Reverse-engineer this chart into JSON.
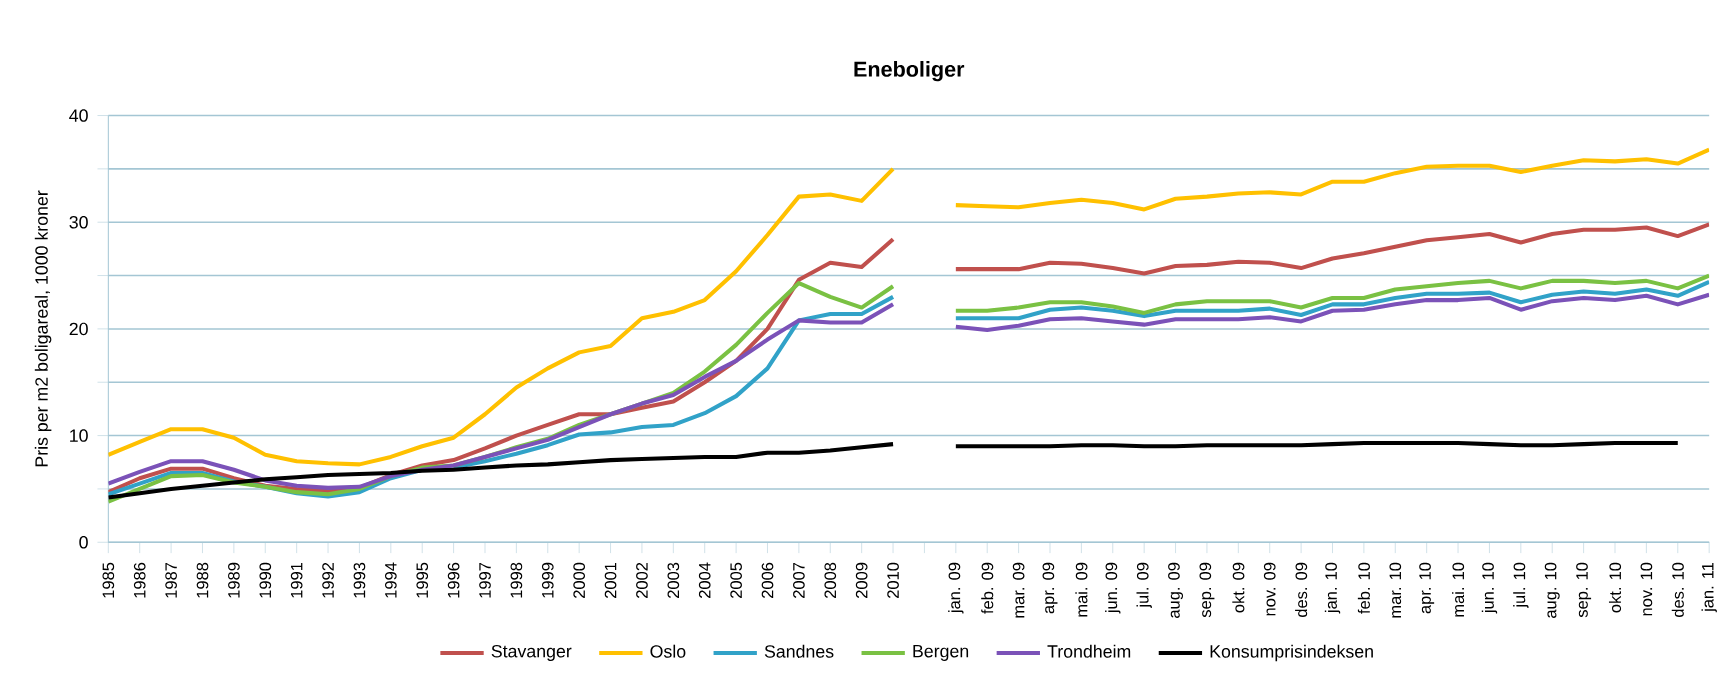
{
  "chart_data": {
    "type": "line",
    "title": "Eneboliger",
    "ylabel": "Pris per m2 boligareal, 1000 kroner",
    "categories": [
      "1985",
      "1986",
      "1987",
      "1988",
      "1989",
      "1990",
      "1991",
      "1992",
      "1993",
      "1994",
      "1995",
      "1996",
      "1997",
      "1998",
      "1999",
      "2000",
      "2001",
      "2002",
      "2003",
      "2004",
      "2005",
      "2006",
      "2007",
      "2008",
      "2009",
      "2010",
      null,
      "jan. 09",
      "feb. 09",
      "mar. 09",
      "apr. 09",
      "mai. 09",
      "jun. 09",
      "jul. 09",
      "aug. 09",
      "sep. 09",
      "okt. 09",
      "nov. 09",
      "des. 09",
      "jan. 10",
      "feb. 10",
      "mar. 10",
      "apr. 10",
      "mai. 10",
      "jun. 10",
      "jul. 10",
      "aug. 10",
      "sep. 10",
      "okt. 10",
      "nov. 10",
      "des. 10",
      "jan. 11"
    ],
    "series": [
      {
        "name": "Stavanger",
        "color": "#c0504d",
        "values": [
          4.7,
          6.0,
          6.9,
          6.9,
          6.0,
          5.3,
          5.0,
          4.8,
          5.1,
          6.3,
          7.2,
          7.7,
          8.8,
          10.0,
          11.0,
          12.0,
          12.0,
          12.6,
          13.2,
          15.0,
          17.0,
          20.0,
          24.6,
          26.2,
          25.8,
          28.4,
          null,
          25.6,
          25.6,
          25.6,
          26.2,
          26.1,
          25.7,
          25.2,
          25.9,
          26.0,
          26.3,
          26.2,
          25.7,
          26.6,
          27.1,
          27.7,
          28.3,
          28.6,
          28.9,
          28.1,
          28.9,
          29.3,
          29.3,
          29.5,
          28.7,
          29.8
        ]
      },
      {
        "name": "Oslo",
        "color": "#ffc000",
        "values": [
          8.2,
          9.4,
          10.6,
          10.6,
          9.8,
          8.2,
          7.6,
          7.4,
          7.3,
          8.0,
          9.0,
          9.8,
          12.0,
          14.5,
          16.3,
          17.8,
          18.4,
          21.0,
          21.6,
          22.7,
          25.4,
          28.8,
          32.4,
          32.6,
          32.0,
          35.0,
          null,
          31.6,
          31.5,
          31.4,
          31.8,
          32.1,
          31.8,
          31.2,
          32.2,
          32.4,
          32.7,
          32.8,
          32.6,
          33.8,
          33.8,
          34.6,
          35.2,
          35.3,
          35.3,
          34.7,
          35.3,
          35.8,
          35.7,
          35.9,
          35.5,
          36.8
        ]
      },
      {
        "name": "Sandnes",
        "color": "#31a2c8",
        "values": [
          4.5,
          5.5,
          6.5,
          6.5,
          5.7,
          5.2,
          4.6,
          4.3,
          4.7,
          6.0,
          6.8,
          7.0,
          7.6,
          8.3,
          9.1,
          10.1,
          10.3,
          10.8,
          11.0,
          12.1,
          13.7,
          16.3,
          20.8,
          21.4,
          21.4,
          23.0,
          null,
          21.0,
          21.0,
          21.0,
          21.8,
          22.0,
          21.7,
          21.2,
          21.7,
          21.7,
          21.7,
          21.9,
          21.3,
          22.3,
          22.3,
          22.9,
          23.3,
          23.3,
          23.4,
          22.5,
          23.2,
          23.5,
          23.3,
          23.7,
          23.1,
          24.4
        ]
      },
      {
        "name": "Bergen",
        "color": "#7ac143",
        "values": [
          3.8,
          5.0,
          6.2,
          6.3,
          5.6,
          5.2,
          4.7,
          4.5,
          5.0,
          6.2,
          7.0,
          7.2,
          8.0,
          8.9,
          9.7,
          11.0,
          12.0,
          13.0,
          14.0,
          16.0,
          18.5,
          21.5,
          24.3,
          23.0,
          22.0,
          24.0,
          null,
          21.7,
          21.7,
          22.0,
          22.5,
          22.5,
          22.1,
          21.5,
          22.3,
          22.6,
          22.6,
          22.6,
          22.0,
          22.9,
          22.9,
          23.7,
          24.0,
          24.3,
          24.5,
          23.8,
          24.5,
          24.5,
          24.3,
          24.5,
          23.8,
          25.0
        ]
      },
      {
        "name": "Trondheim",
        "color": "#7b52b8",
        "values": [
          5.5,
          6.6,
          7.6,
          7.6,
          6.8,
          5.8,
          5.3,
          5.1,
          5.2,
          6.2,
          6.8,
          7.2,
          8.0,
          8.8,
          9.6,
          10.8,
          12.0,
          13.0,
          13.8,
          15.5,
          17.0,
          19.0,
          20.8,
          20.6,
          20.6,
          22.3,
          null,
          20.2,
          19.9,
          20.3,
          20.9,
          21.0,
          20.7,
          20.4,
          20.9,
          20.9,
          20.9,
          21.1,
          20.7,
          21.7,
          21.8,
          22.3,
          22.7,
          22.7,
          22.9,
          21.8,
          22.6,
          22.9,
          22.7,
          23.1,
          22.3,
          23.2
        ]
      },
      {
        "name": "Konsumprisindeksen",
        "color": "#000000",
        "values": [
          4.2,
          4.6,
          5.0,
          5.3,
          5.6,
          5.9,
          6.1,
          6.3,
          6.4,
          6.5,
          6.7,
          6.8,
          7.0,
          7.2,
          7.3,
          7.5,
          7.7,
          7.8,
          7.9,
          8.0,
          8.0,
          8.4,
          8.4,
          8.6,
          8.9,
          9.2,
          null,
          9.0,
          9.0,
          9.0,
          9.0,
          9.1,
          9.1,
          9.0,
          9.0,
          9.1,
          9.1,
          9.1,
          9.1,
          9.2,
          9.3,
          9.3,
          9.3,
          9.3,
          9.2,
          9.1,
          9.1,
          9.2,
          9.3,
          9.3,
          9.3,
          null
        ]
      }
    ],
    "ylim": [
      0,
      40
    ],
    "yticks": [
      0,
      {
        "value": 5,
        "label": null
      },
      10,
      {
        "value": 15,
        "label": null
      },
      20,
      {
        "value": 25,
        "label": null
      },
      30,
      {
        "value": 35,
        "label": null
      },
      40
    ],
    "grid": "y",
    "legend": "bottom"
  }
}
